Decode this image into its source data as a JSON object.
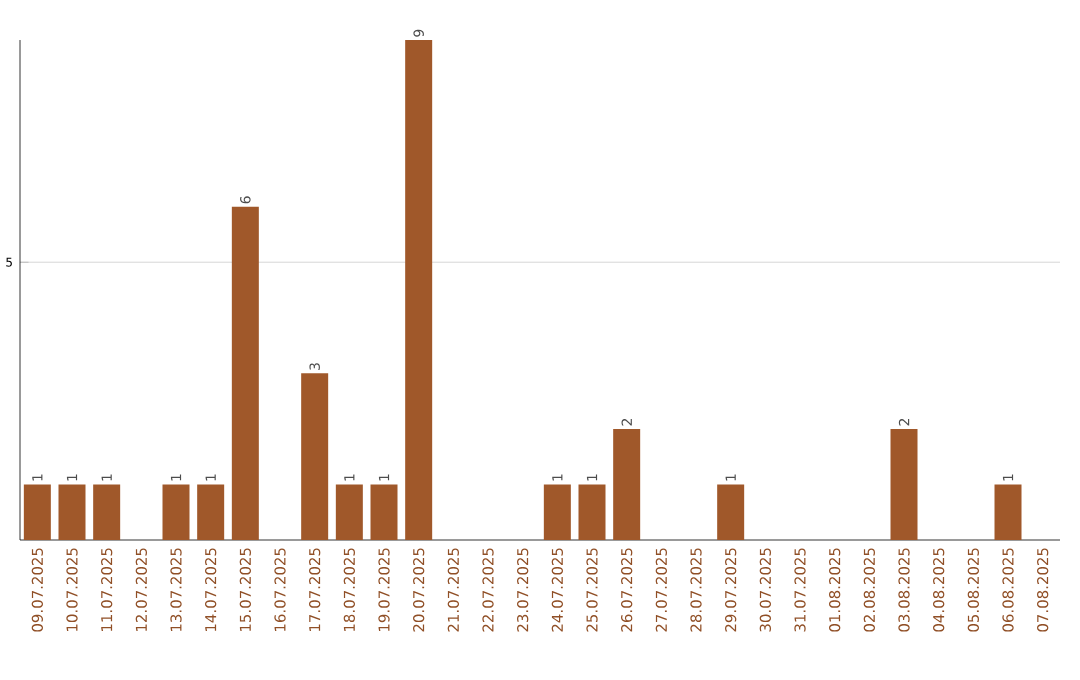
{
  "chart_data": {
    "type": "bar",
    "categories": [
      "09.07.2025",
      "10.07.2025",
      "11.07.2025",
      "12.07.2025",
      "13.07.2025",
      "14.07.2025",
      "15.07.2025",
      "16.07.2025",
      "17.07.2025",
      "18.07.2025",
      "19.07.2025",
      "20.07.2025",
      "21.07.2025",
      "22.07.2025",
      "23.07.2025",
      "24.07.2025",
      "25.07.2025",
      "26.07.2025",
      "27.07.2025",
      "28.07.2025",
      "29.07.2025",
      "30.07.2025",
      "31.07.2025",
      "01.08.2025",
      "02.08.2025",
      "03.08.2025",
      "04.08.2025",
      "05.08.2025",
      "06.08.2025",
      "07.08.2025"
    ],
    "values": [
      1,
      1,
      1,
      0,
      1,
      1,
      6,
      0,
      3,
      1,
      1,
      9,
      0,
      0,
      0,
      1,
      1,
      2,
      0,
      0,
      1,
      0,
      0,
      0,
      0,
      2,
      0,
      0,
      1,
      0
    ],
    "value_labels": [
      "1",
      "1",
      "1",
      null,
      "1",
      "1",
      "6",
      null,
      "3",
      "1",
      "1",
      "9",
      null,
      null,
      null,
      "1",
      "1",
      "2",
      null,
      null,
      "1",
      null,
      null,
      null,
      null,
      "2",
      null,
      null,
      "1",
      null
    ],
    "color": "#a0582a",
    "ylim": [
      0,
      9
    ],
    "yticks": [
      5
    ],
    "grid": "y"
  }
}
